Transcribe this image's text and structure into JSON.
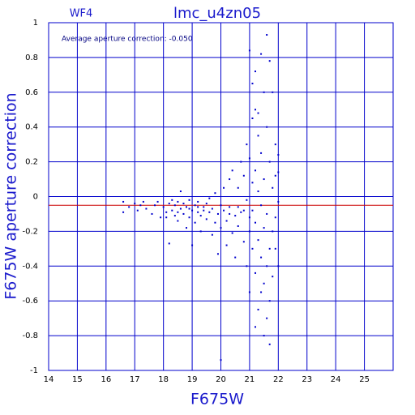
{
  "chart_data": {
    "type": "scatter",
    "title": "lmc_u4zn05",
    "subtitle": "WF4",
    "annotation": "Average aperture correction: -0.050",
    "x_label": "F675W",
    "y_label": "F675W aperture correction",
    "reference_line": -0.05,
    "reference_color": "#cc0000",
    "color": "#0000cc",
    "grid": true,
    "xlim": [
      14,
      26
    ],
    "ylim": [
      -1,
      1
    ],
    "xticks": [
      14,
      15,
      16,
      17,
      18,
      19,
      20,
      21,
      22,
      23,
      24,
      25
    ],
    "yticks": [
      -1,
      -0.8,
      -0.6,
      -0.4,
      -0.2,
      0,
      0.2,
      0.4,
      0.6,
      0.8,
      1
    ],
    "x": [
      16.6,
      16.6,
      16.8,
      17.0,
      17.1,
      17.2,
      17.3,
      17.4,
      17.6,
      17.7,
      17.8,
      17.9,
      18.0,
      18.1,
      18.2,
      18.2,
      18.3,
      18.3,
      18.4,
      18.4,
      18.5,
      18.5,
      18.6,
      18.6,
      18.7,
      18.7,
      18.8,
      18.8,
      18.9,
      18.9,
      19.0,
      19.0,
      19.1,
      19.1,
      19.2,
      19.2,
      19.3,
      19.3,
      19.4,
      19.5,
      19.5,
      19.6,
      19.7,
      19.7,
      19.8,
      19.8,
      19.9,
      19.9,
      20.0,
      20.0,
      20.0,
      20.1,
      20.1,
      20.2,
      20.2,
      20.3,
      20.3,
      20.4,
      20.4,
      20.5,
      20.5,
      20.6,
      20.6,
      20.7,
      20.7,
      20.8,
      20.8,
      20.9,
      20.9,
      20.9,
      21.0,
      21.0,
      21.0,
      21.0,
      21.0,
      21.1,
      21.1,
      21.1,
      21.1,
      21.2,
      21.2,
      21.2,
      21.2,
      21.2,
      21.3,
      21.3,
      21.3,
      21.3,
      21.4,
      21.4,
      21.4,
      21.4,
      21.5,
      21.5,
      21.5,
      21.5,
      21.5,
      21.6,
      21.6,
      21.6,
      21.6,
      21.6,
      21.7,
      21.7,
      21.7,
      21.7,
      21.8,
      21.8,
      21.8,
      21.8,
      21.9,
      21.9,
      21.9,
      22.0,
      22.0,
      22.0,
      22.0,
      19.2,
      18.9,
      19.4,
      20.6,
      20.3,
      21.1,
      21.3,
      21.7,
      21.4,
      21.2,
      18.5,
      18.1,
      19.6,
      20.8,
      21.9
    ],
    "y": [
      -0.03,
      -0.09,
      -0.06,
      -0.04,
      -0.08,
      -0.05,
      -0.03,
      -0.07,
      -0.1,
      -0.05,
      -0.03,
      -0.12,
      -0.06,
      -0.09,
      -0.04,
      -0.27,
      -0.02,
      -0.08,
      -0.11,
      -0.05,
      -0.03,
      -0.14,
      -0.07,
      0.03,
      -0.1,
      -0.04,
      -0.18,
      -0.06,
      -0.02,
      -0.12,
      -0.08,
      -0.28,
      -0.05,
      -0.15,
      -0.09,
      -0.03,
      -0.11,
      -0.2,
      -0.06,
      -0.13,
      -0.04,
      -0.09,
      -0.22,
      -0.07,
      -0.15,
      0.02,
      -0.1,
      -0.33,
      -0.05,
      -0.18,
      -0.94,
      -0.08,
      0.05,
      -0.14,
      -0.28,
      0.1,
      -0.06,
      -0.21,
      0.15,
      -0.11,
      -0.35,
      0.05,
      -0.17,
      0.2,
      -0.09,
      -0.26,
      0.12,
      -0.4,
      -0.02,
      0.3,
      -0.12,
      0.22,
      -0.2,
      0.84,
      -0.55,
      -0.3,
      0.45,
      0.08,
      -0.08,
      0.5,
      0.72,
      -0.44,
      0.15,
      -0.15,
      0.35,
      -0.65,
      0.03,
      -0.25,
      0.82,
      -0.35,
      0.25,
      -0.05,
      0.6,
      -0.5,
      0.1,
      -0.8,
      -0.18,
      0.93,
      -0.7,
      0.4,
      -0.1,
      -0.4,
      0.78,
      0.2,
      -0.3,
      -0.85,
      0.6,
      -0.2,
      0.05,
      -0.46,
      0.3,
      -0.12,
      0.12,
      0.14,
      -0.4,
      0.24,
      -0.03,
      -0.06,
      -0.07,
      -0.08,
      -0.06,
      -0.1,
      0.65,
      0.48,
      -0.6,
      -0.55,
      -0.75,
      -0.09,
      -0.12,
      -0.01,
      -0.08,
      -0.3
    ]
  }
}
